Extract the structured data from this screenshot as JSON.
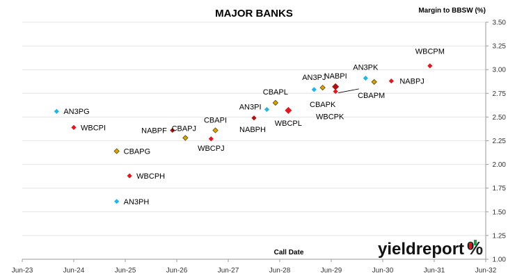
{
  "chart_data": {
    "type": "scatter",
    "title": "MAJOR BANKS",
    "ylabel": "Margin to BBSW (%)",
    "xlabel": "Call Date",
    "x_ticks": [
      "Jun-23",
      "Jun-24",
      "Jun-25",
      "Jun-26",
      "Jun-27",
      "Jun-28",
      "Jun-29",
      "Jun-30",
      "Jun-31",
      "Jun-32"
    ],
    "ylim": [
      1.0,
      3.5
    ],
    "y_ticks": [
      "1.00",
      "1.25",
      "1.50",
      "1.75",
      "2.00",
      "2.25",
      "2.50",
      "2.75",
      "3.00",
      "3.25",
      "3.50"
    ],
    "grid": "horizontal",
    "points": [
      {
        "label": "AN3PG",
        "x": "2024-03",
        "y": 2.56,
        "color": "#1fb6ea"
      },
      {
        "label": "WBCPI",
        "x": "2024-07",
        "y": 2.39,
        "color": "#e8141c"
      },
      {
        "label": "CBAPG",
        "x": "2025-05",
        "y": 2.14,
        "color": "#d8a400"
      },
      {
        "label": "WBCPH",
        "x": "2025-08",
        "y": 1.88,
        "color": "#e8141c"
      },
      {
        "label": "AN3PH",
        "x": "2025-05",
        "y": 1.61,
        "color": "#1fb6ea"
      },
      {
        "label": "NABPF",
        "x": "2026-06",
        "y": 2.36,
        "color": "#b01010"
      },
      {
        "label": "CBAPJ",
        "x": "2026-09",
        "y": 2.28,
        "color": "#d8a400"
      },
      {
        "label": "WBCPJ",
        "x": "2027-03",
        "y": 2.27,
        "color": "#e8141c"
      },
      {
        "label": "CBAPI",
        "x": "2027-04",
        "y": 2.36,
        "color": "#d8a400"
      },
      {
        "label": "NABPH",
        "x": "2028-01",
        "y": 2.49,
        "color": "#b01010"
      },
      {
        "label": "AN3PI",
        "x": "2028-04",
        "y": 2.58,
        "color": "#1fb6ea"
      },
      {
        "label": "CBAPL",
        "x": "2028-06",
        "y": 2.65,
        "color": "#d8a400"
      },
      {
        "label": "WBCPL",
        "x": "2028-09",
        "y": 2.57,
        "color": "#e8141c"
      },
      {
        "label": "AN3PJ",
        "x": "2029-03",
        "y": 2.79,
        "color": "#1fb6ea"
      },
      {
        "label": "CBAPK",
        "x": "2029-05",
        "y": 2.81,
        "color": "#d8a400"
      },
      {
        "label": "NABPI",
        "x": "2029-08",
        "y": 2.82,
        "color": "#b01010"
      },
      {
        "label": "WBCPK",
        "x": "2029-08",
        "y": 2.77,
        "color": "#e8141c"
      },
      {
        "label": "AN3PK",
        "x": "2030-03",
        "y": 2.91,
        "color": "#1fb6ea"
      },
      {
        "label": "CBAPM",
        "x": "2030-05",
        "y": 2.87,
        "color": "#d8a400"
      },
      {
        "label": "NABPJ",
        "x": "2030-09",
        "y": 2.88,
        "color": "#e8141c"
      },
      {
        "label": "WBCPM",
        "x": "2031-06",
        "y": 3.04,
        "color": "#e8141c"
      }
    ]
  },
  "brand": {
    "text": "yieldreport",
    "symbol": "%"
  }
}
